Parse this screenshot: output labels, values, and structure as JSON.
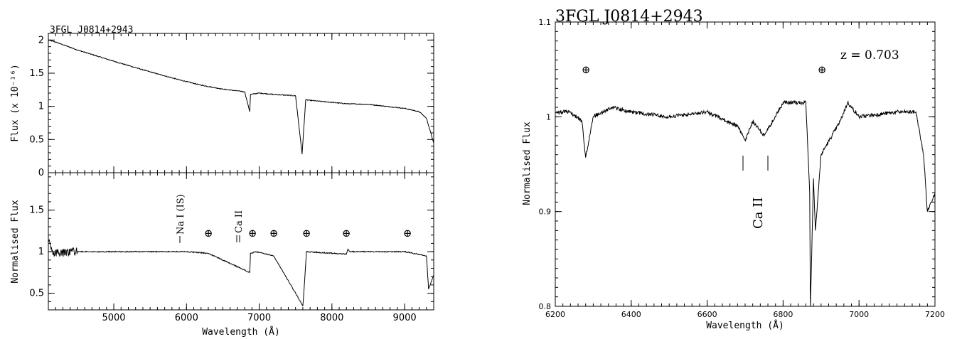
{
  "chart_data": [
    {
      "type": "line",
      "title": "3FGL J0814+2943",
      "ylabel": "Flux (x 10⁻¹⁶)",
      "xlim": [
        4100,
        9400
      ],
      "ylim": [
        0,
        2.1
      ],
      "yticks": [
        "0",
        "0.5",
        "1",
        "1.5",
        "2"
      ],
      "xticks": [
        "5000",
        "6000",
        "7000",
        "8000",
        "9000"
      ],
      "series": [
        {
          "x": [
            4100,
            4200,
            4500,
            5000,
            5500,
            5900,
            6200,
            6500,
            6800,
            6870,
            6880,
            7000,
            7200,
            7500,
            7590,
            7610,
            7640,
            7700,
            8000,
            8200,
            8500,
            9000,
            9200,
            9300,
            9400
          ],
          "y": [
            2.0,
            1.97,
            1.85,
            1.68,
            1.52,
            1.4,
            1.32,
            1.26,
            1.22,
            0.92,
            1.18,
            1.2,
            1.18,
            1.16,
            0.28,
            0.62,
            1.1,
            1.09,
            1.06,
            1.04,
            1.03,
            0.97,
            0.92,
            0.82,
            0.45
          ]
        }
      ]
    },
    {
      "type": "line",
      "xlabel": "Wavelength (Å)",
      "ylabel": "Normalised Flux",
      "xlim": [
        4100,
        9400
      ],
      "ylim": [
        0.3,
        1.95
      ],
      "yticks": [
        "0.5",
        "1",
        "1.5"
      ],
      "xticks": [
        "5000",
        "6000",
        "7000",
        "8000",
        "9000"
      ],
      "annotations": [
        "Na I (IS)",
        "Ca II",
        "⊕",
        "⊕",
        "⊕",
        "⊕",
        "⊕",
        "⊕"
      ],
      "series": [
        {
          "x": [
            4100,
            4150,
            4250,
            4400,
            5000,
            6000,
            6300,
            6870,
            6880,
            6950,
            7200,
            7600,
            7610,
            7650,
            8200,
            8220,
            8250,
            9000,
            9300,
            9330,
            9400
          ],
          "y": [
            1.15,
            1.0,
            0.98,
            1.0,
            1.0,
            1.0,
            0.98,
            0.75,
            0.98,
            1.0,
            0.95,
            0.35,
            0.45,
            1.0,
            0.97,
            1.03,
            1.0,
            1.0,
            0.95,
            0.55,
            0.72
          ]
        }
      ]
    },
    {
      "type": "line",
      "title": "3FGL J0814+2943",
      "xlabel": "Wavelength (Å)",
      "ylabel": "Normalised Flux",
      "xlim": [
        6200,
        7200
      ],
      "ylim": [
        0.8,
        1.1
      ],
      "xticks": [
        "6200",
        "6400",
        "6600",
        "6800",
        "7000",
        "7200"
      ],
      "yticks": [
        "0.8",
        "0.9",
        "1",
        "1.1"
      ],
      "annotations": [
        "z = 0.703",
        "Ca II",
        "⊕",
        "⊕"
      ],
      "series": [
        {
          "x": [
            6200,
            6240,
            6270,
            6280,
            6300,
            6350,
            6400,
            6500,
            6600,
            6680,
            6700,
            6720,
            6750,
            6765,
            6800,
            6860,
            6870,
            6872,
            6880,
            6885,
            6900,
            6950,
            6970,
            7000,
            7100,
            7150,
            7170,
            7180,
            7200
          ],
          "y": [
            1.005,
            1.005,
            0.995,
            0.957,
            1.0,
            1.01,
            1.005,
            1.0,
            1.005,
            0.99,
            0.975,
            0.995,
            0.98,
            0.99,
            1.015,
            1.015,
            0.92,
            0.8,
            0.935,
            0.88,
            0.96,
            0.995,
            1.015,
            1.0,
            1.005,
            1.005,
            0.96,
            0.9,
            0.92
          ]
        }
      ]
    }
  ]
}
